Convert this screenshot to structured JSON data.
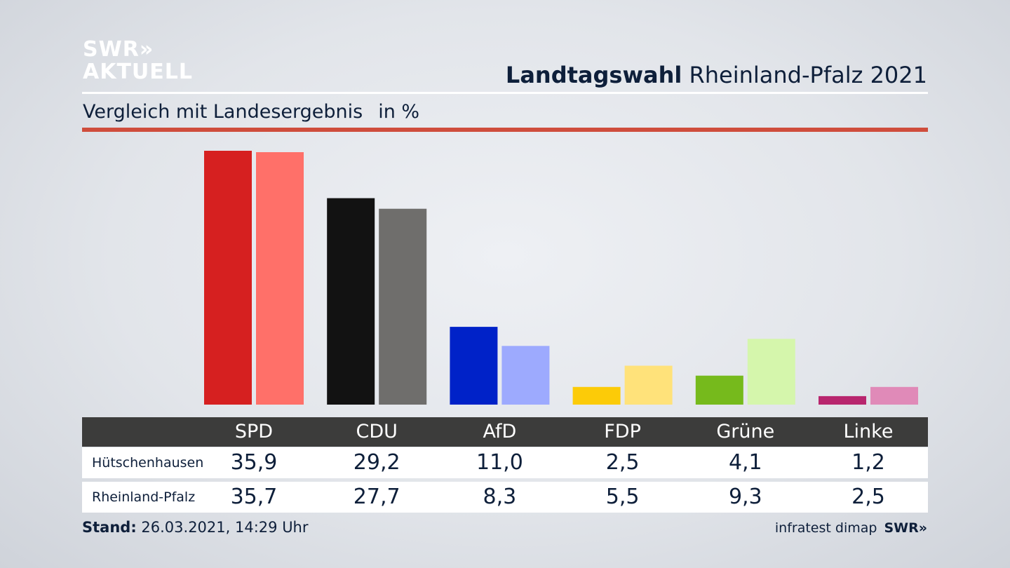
{
  "brand": {
    "line1": "SWR",
    "line2": "AKTUELL",
    "arrows": "»"
  },
  "header": {
    "title_bold": "Landtagswahl",
    "title_rest": "Rheinland-Pfalz 2021"
  },
  "subheader": {
    "text": "Vergleich mit Landesergebnis",
    "unit": "in %"
  },
  "footer": {
    "stand_label": "Stand:",
    "stand_value": "26.03.2021, 14:29 Uhr",
    "source": "infratest dimap",
    "brand": "SWR",
    "brand_arrows": "»"
  },
  "chart_data": {
    "type": "bar",
    "categories": [
      "SPD",
      "CDU",
      "AfD",
      "FDP",
      "Grüne",
      "Linke"
    ],
    "ylim": [
      0,
      36
    ],
    "series": [
      {
        "name": "Hütschenhausen",
        "values": [
          35.9,
          29.2,
          11.0,
          2.5,
          4.1,
          1.2
        ],
        "labels": [
          "35,9",
          "29,2",
          "11,0",
          "2,5",
          "4,1",
          "1,2"
        ],
        "colors": [
          "#d62020",
          "#121212",
          "#0022c8",
          "#fccb08",
          "#76ba1c",
          "#b8266e"
        ]
      },
      {
        "name": "Rheinland-Pfalz",
        "values": [
          35.7,
          27.7,
          8.3,
          5.5,
          9.3,
          2.5
        ],
        "labels": [
          "35,7",
          "27,7",
          "8,3",
          "5,5",
          "9,3",
          "2,5"
        ],
        "colors": [
          "#ff7069",
          "#6f6e6c",
          "#9daafe",
          "#ffe27a",
          "#d5f6ac",
          "#e08ab8"
        ]
      }
    ],
    "grid": false,
    "legend": "table-below"
  }
}
